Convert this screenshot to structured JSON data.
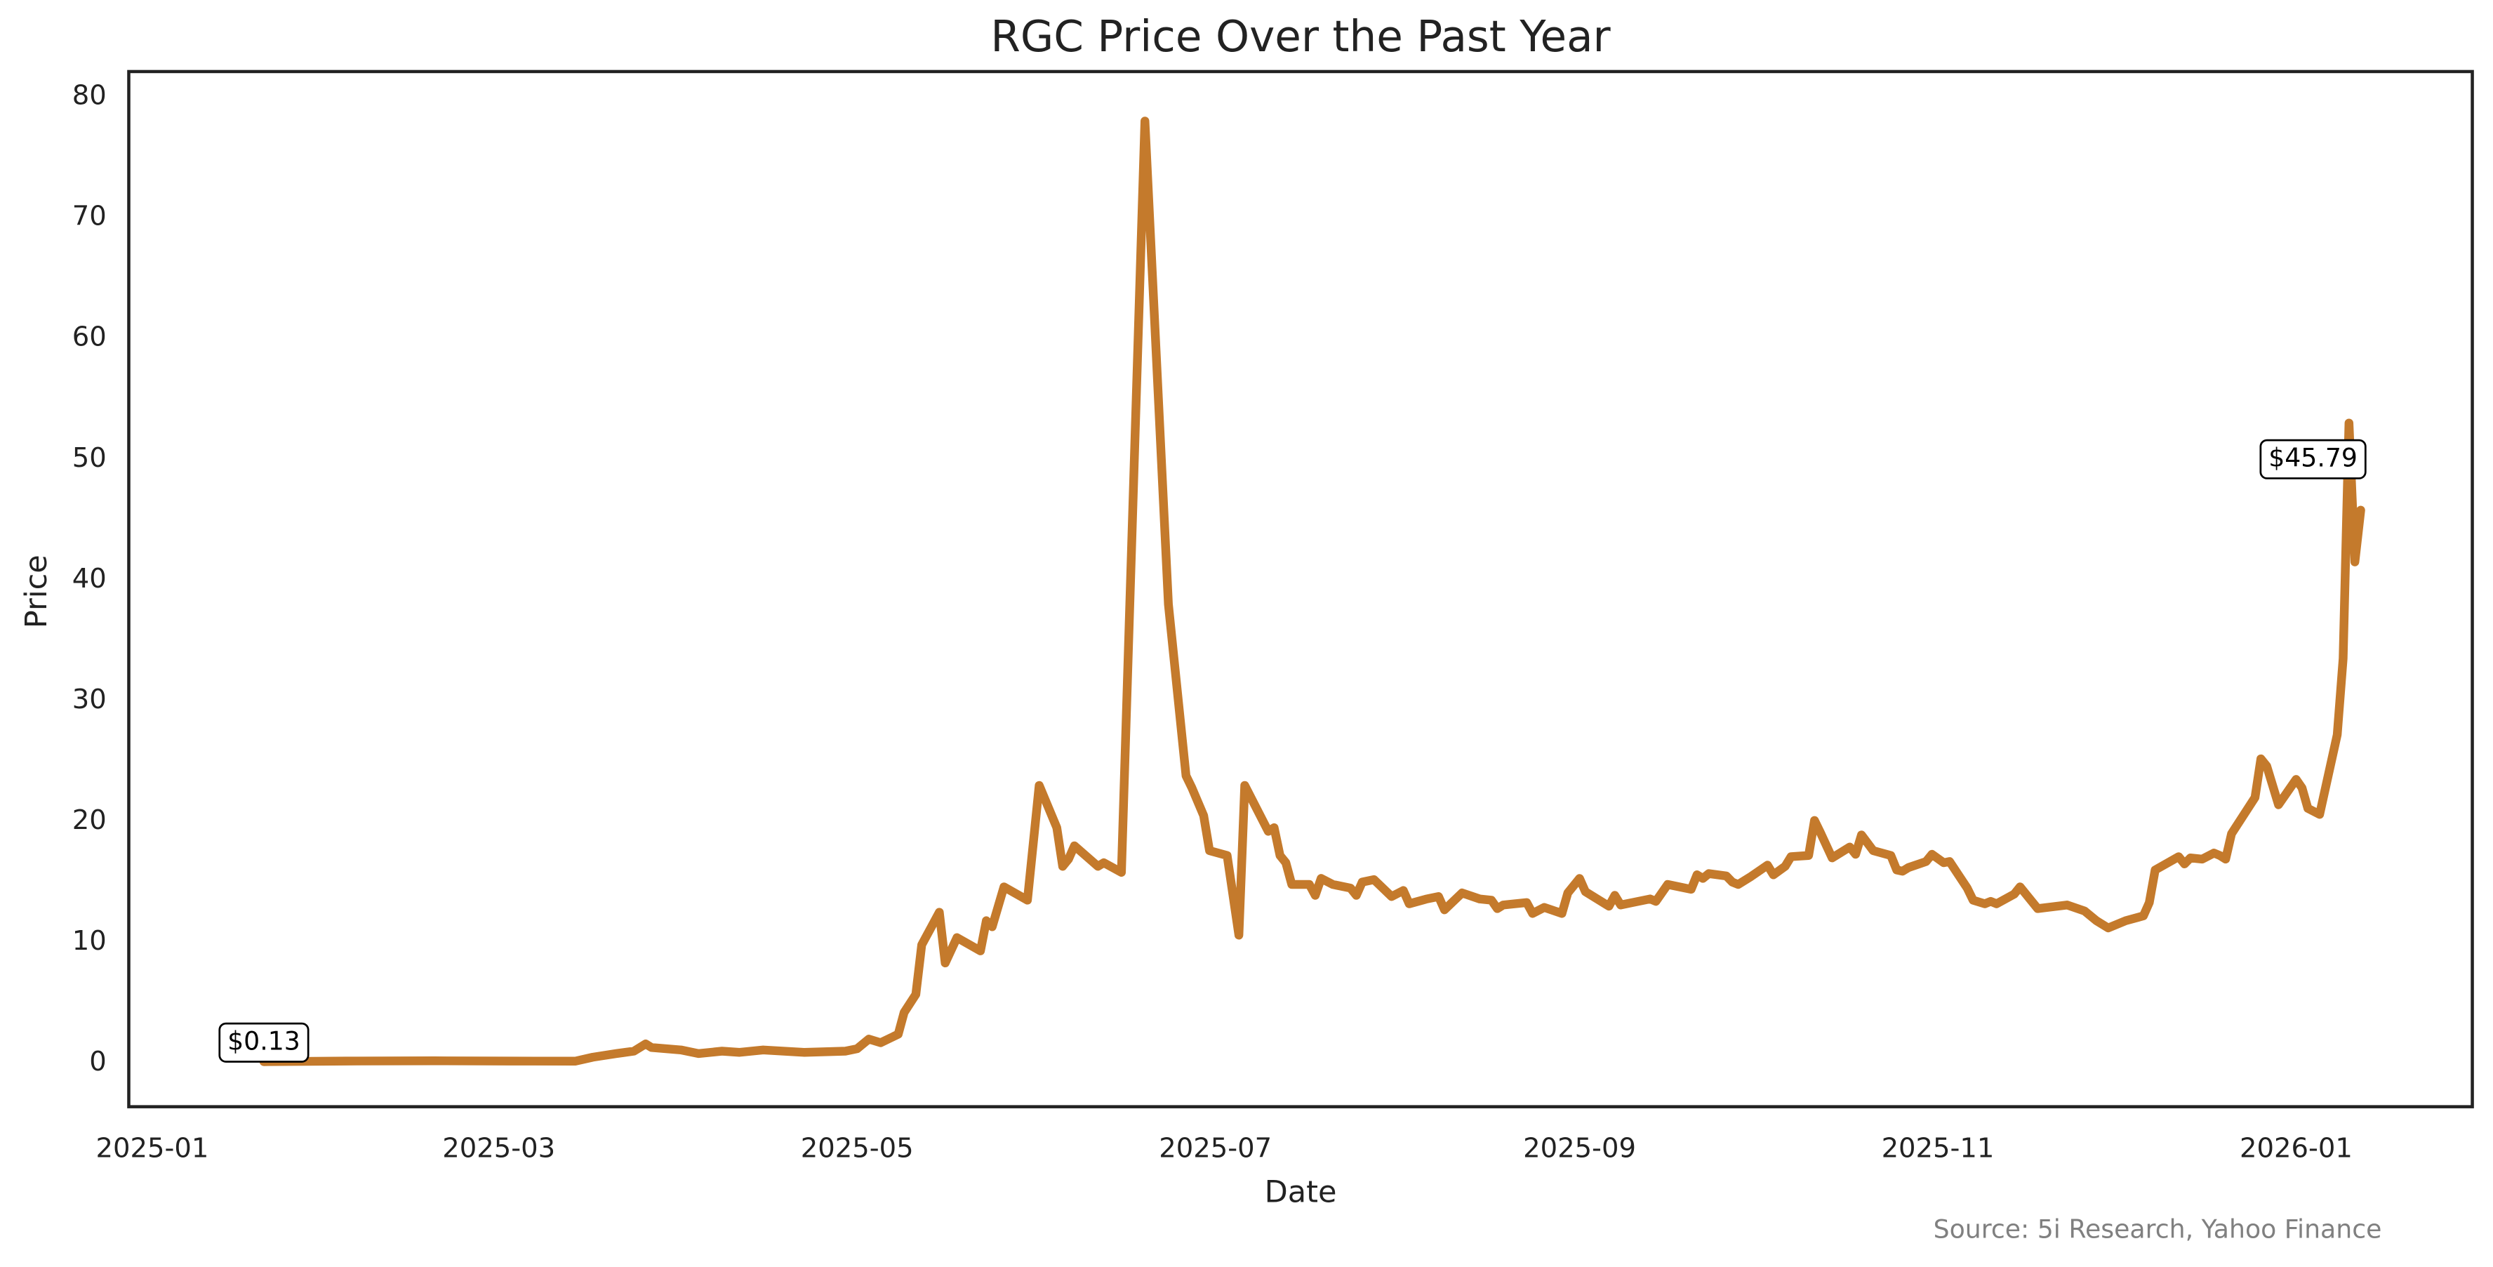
{
  "chart_data": {
    "type": "line",
    "title": "RGC Price Over the Past Year",
    "x_label": "Date",
    "y_label": "Price",
    "source": "Source: 5i Research, Yahoo Finance",
    "xlim": [
      "2024-12-28",
      "2026-01-31"
    ],
    "ylim": [
      -3.6,
      82.1
    ],
    "xticks": [
      {
        "value": "2025-01-01",
        "label": "2025-01"
      },
      {
        "value": "2025-03-01",
        "label": "2025-03"
      },
      {
        "value": "2025-05-01",
        "label": "2025-05"
      },
      {
        "value": "2025-07-01",
        "label": "2025-07"
      },
      {
        "value": "2025-09-01",
        "label": "2025-09"
      },
      {
        "value": "2025-11-01",
        "label": "2025-11"
      },
      {
        "value": "2026-01-01",
        "label": "2026-01"
      }
    ],
    "yticks": [
      0,
      10,
      20,
      30,
      40,
      50,
      60,
      70,
      80
    ],
    "grid": false,
    "series": [
      {
        "name": "RGC",
        "color": "#c47a2c",
        "x": [
          "2025-01-20",
          "2025-02-03",
          "2025-02-18",
          "2025-03-03",
          "2025-03-14",
          "2025-03-17",
          "2025-03-21",
          "2025-03-24",
          "2025-03-26",
          "2025-03-27",
          "2025-04-01",
          "2025-04-04",
          "2025-04-08",
          "2025-04-11",
          "2025-04-15",
          "2025-04-22",
          "2025-04-29",
          "2025-05-01",
          "2025-05-03",
          "2025-05-05",
          "2025-05-08",
          "2025-05-09",
          "2025-05-11",
          "2025-05-12",
          "2025-05-15",
          "2025-05-16",
          "2025-05-18",
          "2025-05-22",
          "2025-05-23",
          "2025-05-24",
          "2025-05-26",
          "2025-05-30",
          "2025-06-01",
          "2025-06-04",
          "2025-06-05",
          "2025-06-06",
          "2025-06-07",
          "2025-06-11",
          "2025-06-12",
          "2025-06-15",
          "2025-06-19",
          "2025-06-23",
          "2025-06-26",
          "2025-06-27",
          "2025-06-29",
          "2025-06-30",
          "2025-07-03",
          "2025-07-05",
          "2025-07-06",
          "2025-07-10",
          "2025-07-11",
          "2025-07-12",
          "2025-07-13",
          "2025-07-14",
          "2025-07-17",
          "2025-07-18",
          "2025-07-19",
          "2025-07-21",
          "2025-07-24",
          "2025-07-25",
          "2025-07-26",
          "2025-07-28",
          "2025-07-31",
          "2025-08-02",
          "2025-08-03",
          "2025-08-06",
          "2025-08-08",
          "2025-08-09",
          "2025-08-12",
          "2025-08-15",
          "2025-08-17",
          "2025-08-18",
          "2025-08-19",
          "2025-08-23",
          "2025-08-24",
          "2025-08-26",
          "2025-08-29",
          "2025-08-30",
          "2025-09-01",
          "2025-09-02",
          "2025-09-06",
          "2025-09-07",
          "2025-09-08",
          "2025-09-10",
          "2025-09-13",
          "2025-09-14",
          "2025-09-16",
          "2025-09-20",
          "2025-09-21",
          "2025-09-22",
          "2025-09-23",
          "2025-09-26",
          "2025-09-27",
          "2025-09-28",
          "2025-09-30",
          "2025-10-03",
          "2025-10-04",
          "2025-10-06",
          "2025-10-07",
          "2025-10-10",
          "2025-10-11",
          "2025-10-12",
          "2025-10-14",
          "2025-10-17",
          "2025-10-18",
          "2025-10-19",
          "2025-10-21",
          "2025-10-24",
          "2025-10-25",
          "2025-10-26",
          "2025-10-27",
          "2025-10-30",
          "2025-10-31",
          "2025-11-02",
          "2025-11-03",
          "2025-11-06",
          "2025-11-07",
          "2025-11-09",
          "2025-11-10",
          "2025-11-11",
          "2025-11-14",
          "2025-11-15",
          "2025-11-18",
          "2025-11-23",
          "2025-11-26",
          "2025-11-28",
          "2025-11-30",
          "2025-12-03",
          "2025-12-06",
          "2025-12-07",
          "2025-12-08",
          "2025-12-12",
          "2025-12-13",
          "2025-12-14",
          "2025-12-16",
          "2025-12-18",
          "2025-12-19",
          "2025-12-20",
          "2025-12-21",
          "2025-12-25",
          "2025-12-26",
          "2025-12-27",
          "2025-12-29",
          "2026-01-01",
          "2026-01-02",
          "2026-01-03",
          "2026-01-05",
          "2026-01-08",
          "2026-01-09",
          "2026-01-10",
          "2026-01-11",
          "2026-01-12"
        ],
        "values": [
          0.13,
          0.18,
          0.2,
          0.18,
          0.17,
          0.5,
          0.8,
          1.0,
          1.6,
          1.3,
          1.1,
          0.8,
          1.0,
          0.9,
          1.1,
          0.9,
          1.0,
          1.2,
          2.0,
          1.7,
          2.4,
          4.2,
          5.7,
          9.8,
          12.5,
          8.3,
          10.4,
          9.3,
          11.8,
          11.3,
          14.6,
          13.5,
          23.0,
          19.5,
          16.3,
          16.9,
          18.0,
          16.3,
          16.6,
          15.8,
          78.0,
          38.0,
          23.8,
          22.8,
          20.5,
          17.6,
          17.2,
          10.6,
          23.0,
          19.2,
          19.5,
          17.2,
          16.6,
          14.8,
          14.8,
          13.9,
          15.3,
          14.8,
          14.5,
          13.9,
          15.0,
          15.2,
          13.8,
          14.3,
          13.2,
          13.6,
          13.8,
          12.7,
          14.1,
          13.6,
          13.5,
          12.8,
          13.1,
          13.3,
          12.4,
          12.9,
          12.4,
          14.1,
          15.3,
          14.2,
          13.0,
          13.9,
          13.1,
          13.3,
          13.6,
          13.4,
          14.8,
          14.4,
          15.6,
          15.3,
          15.7,
          15.5,
          15.0,
          14.8,
          15.4,
          16.4,
          15.6,
          16.3,
          17.1,
          17.2,
          20.1,
          19.1,
          17.0,
          17.9,
          17.3,
          18.9,
          17.6,
          17.2,
          16.0,
          15.9,
          16.2,
          16.7,
          17.3,
          16.6,
          16.7,
          14.5,
          13.5,
          13.2,
          13.4,
          13.2,
          14.0,
          14.6,
          12.8,
          13.1,
          12.6,
          11.8,
          11.2,
          11.8,
          12.2,
          13.3,
          16.0,
          17.1,
          16.5,
          17.0,
          16.9,
          17.4,
          17.2,
          16.9,
          19.0,
          22.0,
          25.2,
          24.6,
          21.4,
          23.5,
          22.8,
          21.1,
          20.6,
          27.2,
          33.5,
          53.0,
          41.5,
          45.79
        ]
      }
    ],
    "annotations": [
      {
        "label": "$0.13",
        "x": "2025-01-20",
        "y": 0.13
      },
      {
        "label": "$45.79",
        "x": "2026-01-12",
        "y": 45.79
      }
    ]
  }
}
